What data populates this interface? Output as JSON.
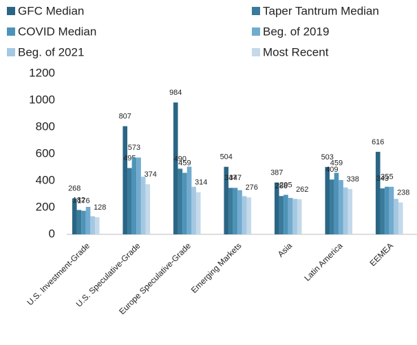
{
  "chart_data": {
    "type": "bar",
    "categories": [
      "U.S. Investment-Grade",
      "U.S. Speculative-Grade",
      "Europe Speculative-Grade",
      "Emerging Markets",
      "Asia",
      "Latin America",
      "EEMEA"
    ],
    "series": [
      {
        "name": "GFC Median",
        "color": "#2b6585",
        "values": [
          268,
          807,
          984,
          504,
          387,
          503,
          616
        ],
        "value_labels": [
          "268",
          "807",
          "984",
          "504",
          "387",
          "503",
          "616"
        ]
      },
      {
        "name": "Taper Tantrum Median",
        "color": "#3a7b9c",
        "values": [
          182,
          495,
          490,
          347,
          286,
          409,
          343
        ],
        "value_labels": [
          "182",
          "495",
          "490",
          "347",
          "286",
          "409",
          "343"
        ]
      },
      {
        "name": "COVID Median",
        "color": "#4d93b8",
        "values": [
          176,
          573,
          459,
          347,
          295,
          459,
          355
        ],
        "value_labels": [
          "176",
          "573",
          "459",
          "347",
          "295",
          "459",
          "355"
        ]
      },
      {
        "name": "Beg. of 2019",
        "color": "#72abcf",
        "values": [
          205,
          573,
          505,
          330,
          272,
          405,
          355
        ],
        "value_labels": [
          null,
          null,
          null,
          null,
          null,
          null,
          null
        ]
      },
      {
        "name": "Beg. of 2021",
        "color": "#a4c8e1",
        "values": [
          135,
          430,
          355,
          285,
          265,
          350,
          265
        ],
        "value_labels": [
          null,
          null,
          null,
          null,
          null,
          null,
          null
        ]
      },
      {
        "name": "Most Recent",
        "color": "#c4d9ea",
        "values": [
          128,
          374,
          314,
          276,
          262,
          338,
          238
        ],
        "value_labels": [
          "128",
          "374",
          "314",
          "276",
          "262",
          "338",
          "238"
        ]
      }
    ],
    "ylim": [
      0,
      1200
    ],
    "yticks": [
      0,
      200,
      400,
      600,
      800,
      1000,
      1200
    ],
    "grid": false
  }
}
